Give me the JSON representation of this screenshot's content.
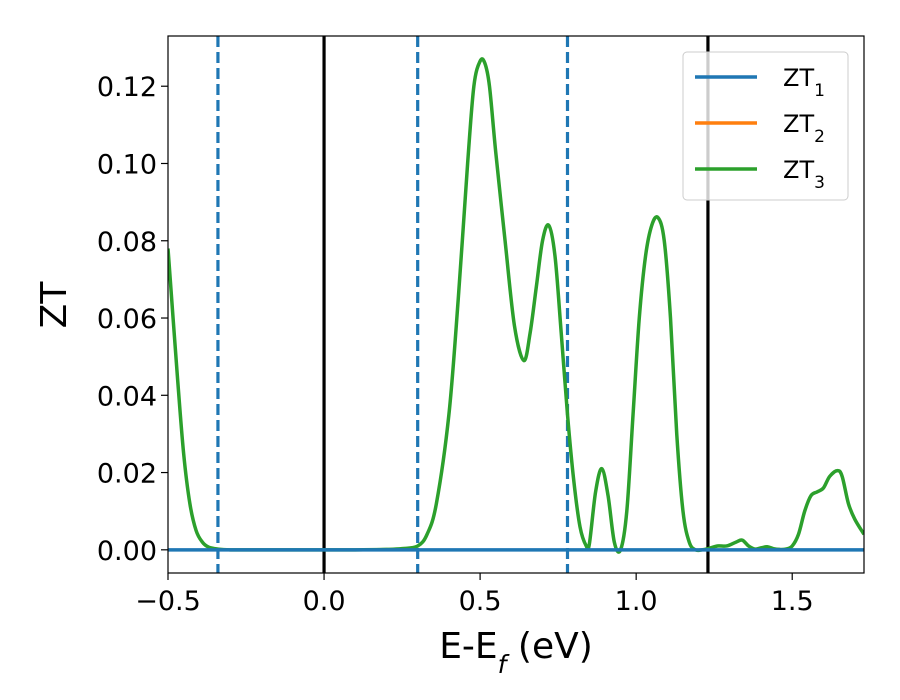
{
  "chart_data": {
    "type": "line",
    "xlabel": "E-E",
    "xlabel_sub": "f",
    "xlabel_unit": "(eV)",
    "ylabel": "ZT",
    "xlim": [
      -0.5,
      1.73
    ],
    "ylim": [
      -0.006,
      0.133
    ],
    "x_ticks": [
      -0.5,
      0.0,
      0.5,
      1.0,
      1.5
    ],
    "x_tick_labels": [
      "−0.5",
      "0.0",
      "0.5",
      "1.0",
      "1.5"
    ],
    "y_ticks": [
      0.0,
      0.02,
      0.04,
      0.06,
      0.08,
      0.1,
      0.12
    ],
    "y_tick_labels": [
      "0.00",
      "0.02",
      "0.04",
      "0.06",
      "0.08",
      "0.10",
      "0.12"
    ],
    "grid": false,
    "legend_position": "top-right",
    "vlines": [
      {
        "x": -0.34,
        "style": "dashed",
        "color": "#1f77b4"
      },
      {
        "x": 0.0,
        "style": "solid",
        "color": "#000000"
      },
      {
        "x": 0.3,
        "style": "dashed",
        "color": "#1f77b4"
      },
      {
        "x": 0.78,
        "style": "dashed",
        "color": "#1f77b4"
      },
      {
        "x": 1.23,
        "style": "solid",
        "color": "#000000"
      }
    ],
    "series": [
      {
        "name": "ZT",
        "sub": "1",
        "color": "#1f77b4",
        "x": [
          -0.5,
          1.73
        ],
        "y": [
          0.0,
          0.0
        ]
      },
      {
        "name": "ZT",
        "sub": "2",
        "color": "#ff7f0e",
        "x": [],
        "y": []
      },
      {
        "name": "ZT",
        "sub": "3",
        "color": "#2ca02c",
        "x": [
          -0.5,
          -0.47,
          -0.45,
          -0.43,
          -0.41,
          -0.39,
          -0.37,
          -0.34,
          -0.3,
          -0.2,
          -0.1,
          0.0,
          0.1,
          0.2,
          0.25,
          0.3,
          0.33,
          0.36,
          0.4,
          0.43,
          0.46,
          0.48,
          0.5,
          0.515,
          0.53,
          0.55,
          0.58,
          0.61,
          0.64,
          0.66,
          0.68,
          0.7,
          0.72,
          0.74,
          0.76,
          0.78,
          0.8,
          0.82,
          0.84,
          0.85,
          0.87,
          0.89,
          0.91,
          0.93,
          0.95,
          0.97,
          0.99,
          1.01,
          1.03,
          1.05,
          1.07,
          1.09,
          1.11,
          1.13,
          1.15,
          1.17,
          1.19,
          1.21,
          1.23,
          1.26,
          1.29,
          1.32,
          1.34,
          1.36,
          1.38,
          1.4,
          1.42,
          1.44,
          1.46,
          1.48,
          1.5,
          1.52,
          1.54,
          1.56,
          1.58,
          1.6,
          1.62,
          1.645,
          1.66,
          1.68,
          1.7,
          1.73
        ],
        "y": [
          0.078,
          0.045,
          0.025,
          0.012,
          0.005,
          0.002,
          0.0007,
          0.0002,
          0.0,
          0.0,
          0.0,
          0.0,
          0.0,
          0.0001,
          0.0003,
          0.001,
          0.004,
          0.012,
          0.035,
          0.065,
          0.1,
          0.12,
          0.1265,
          0.126,
          0.12,
          0.103,
          0.08,
          0.058,
          0.049,
          0.056,
          0.068,
          0.08,
          0.084,
          0.076,
          0.056,
          0.035,
          0.018,
          0.006,
          0.001,
          0.0015,
          0.015,
          0.021,
          0.014,
          0.002,
          0.0,
          0.01,
          0.035,
          0.06,
          0.076,
          0.084,
          0.086,
          0.08,
          0.06,
          0.03,
          0.01,
          0.002,
          0.0,
          0.0,
          0.0003,
          0.001,
          0.001,
          0.002,
          0.0025,
          0.001,
          0.0002,
          0.0005,
          0.0008,
          0.0003,
          0.0001,
          0.0002,
          0.001,
          0.004,
          0.01,
          0.014,
          0.015,
          0.016,
          0.019,
          0.0205,
          0.019,
          0.012,
          0.008,
          0.004
        ]
      }
    ]
  }
}
